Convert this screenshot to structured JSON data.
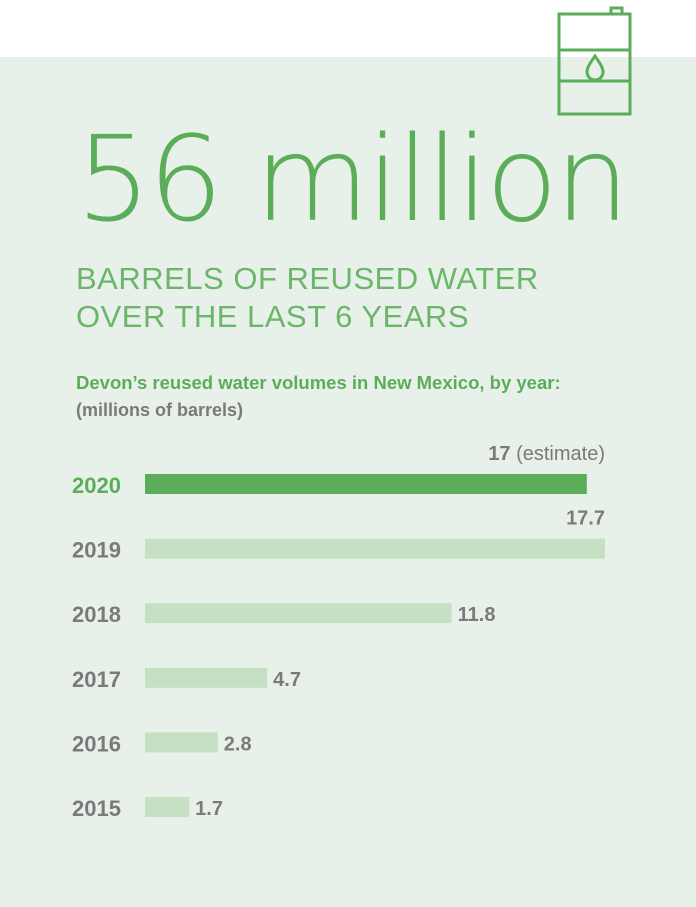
{
  "headline": "56 million",
  "subhead": {
    "line1": "BARRELS OF REUSED WATER",
    "line2": "OVER THE LAST 6 YEARS"
  },
  "icon": "oil-barrel-drop-icon",
  "colors": {
    "accent": "#5cad5a",
    "bar_highlight": "#5cad5a",
    "bar_normal": "#c6e0c4",
    "label_gray": "#7a7a7a",
    "panel": "#e8f1e9"
  },
  "chart_data": {
    "type": "bar",
    "orientation": "horizontal",
    "title": "Devon’s reused water volumes in New Mexico, by year:",
    "subtitle": "(millions of barrels)",
    "categories": [
      "2020",
      "2019",
      "2018",
      "2017",
      "2016",
      "2015"
    ],
    "values": [
      17,
      17.7,
      11.8,
      4.7,
      2.8,
      1.7
    ],
    "value_labels": [
      "17",
      "17.7",
      "11.8",
      "4.7",
      "2.8",
      "1.7"
    ],
    "annotations": {
      "2020": "(estimate)"
    },
    "highlight": "2020",
    "xlim": [
      0,
      17.7
    ],
    "grid": false,
    "legend": "none"
  }
}
